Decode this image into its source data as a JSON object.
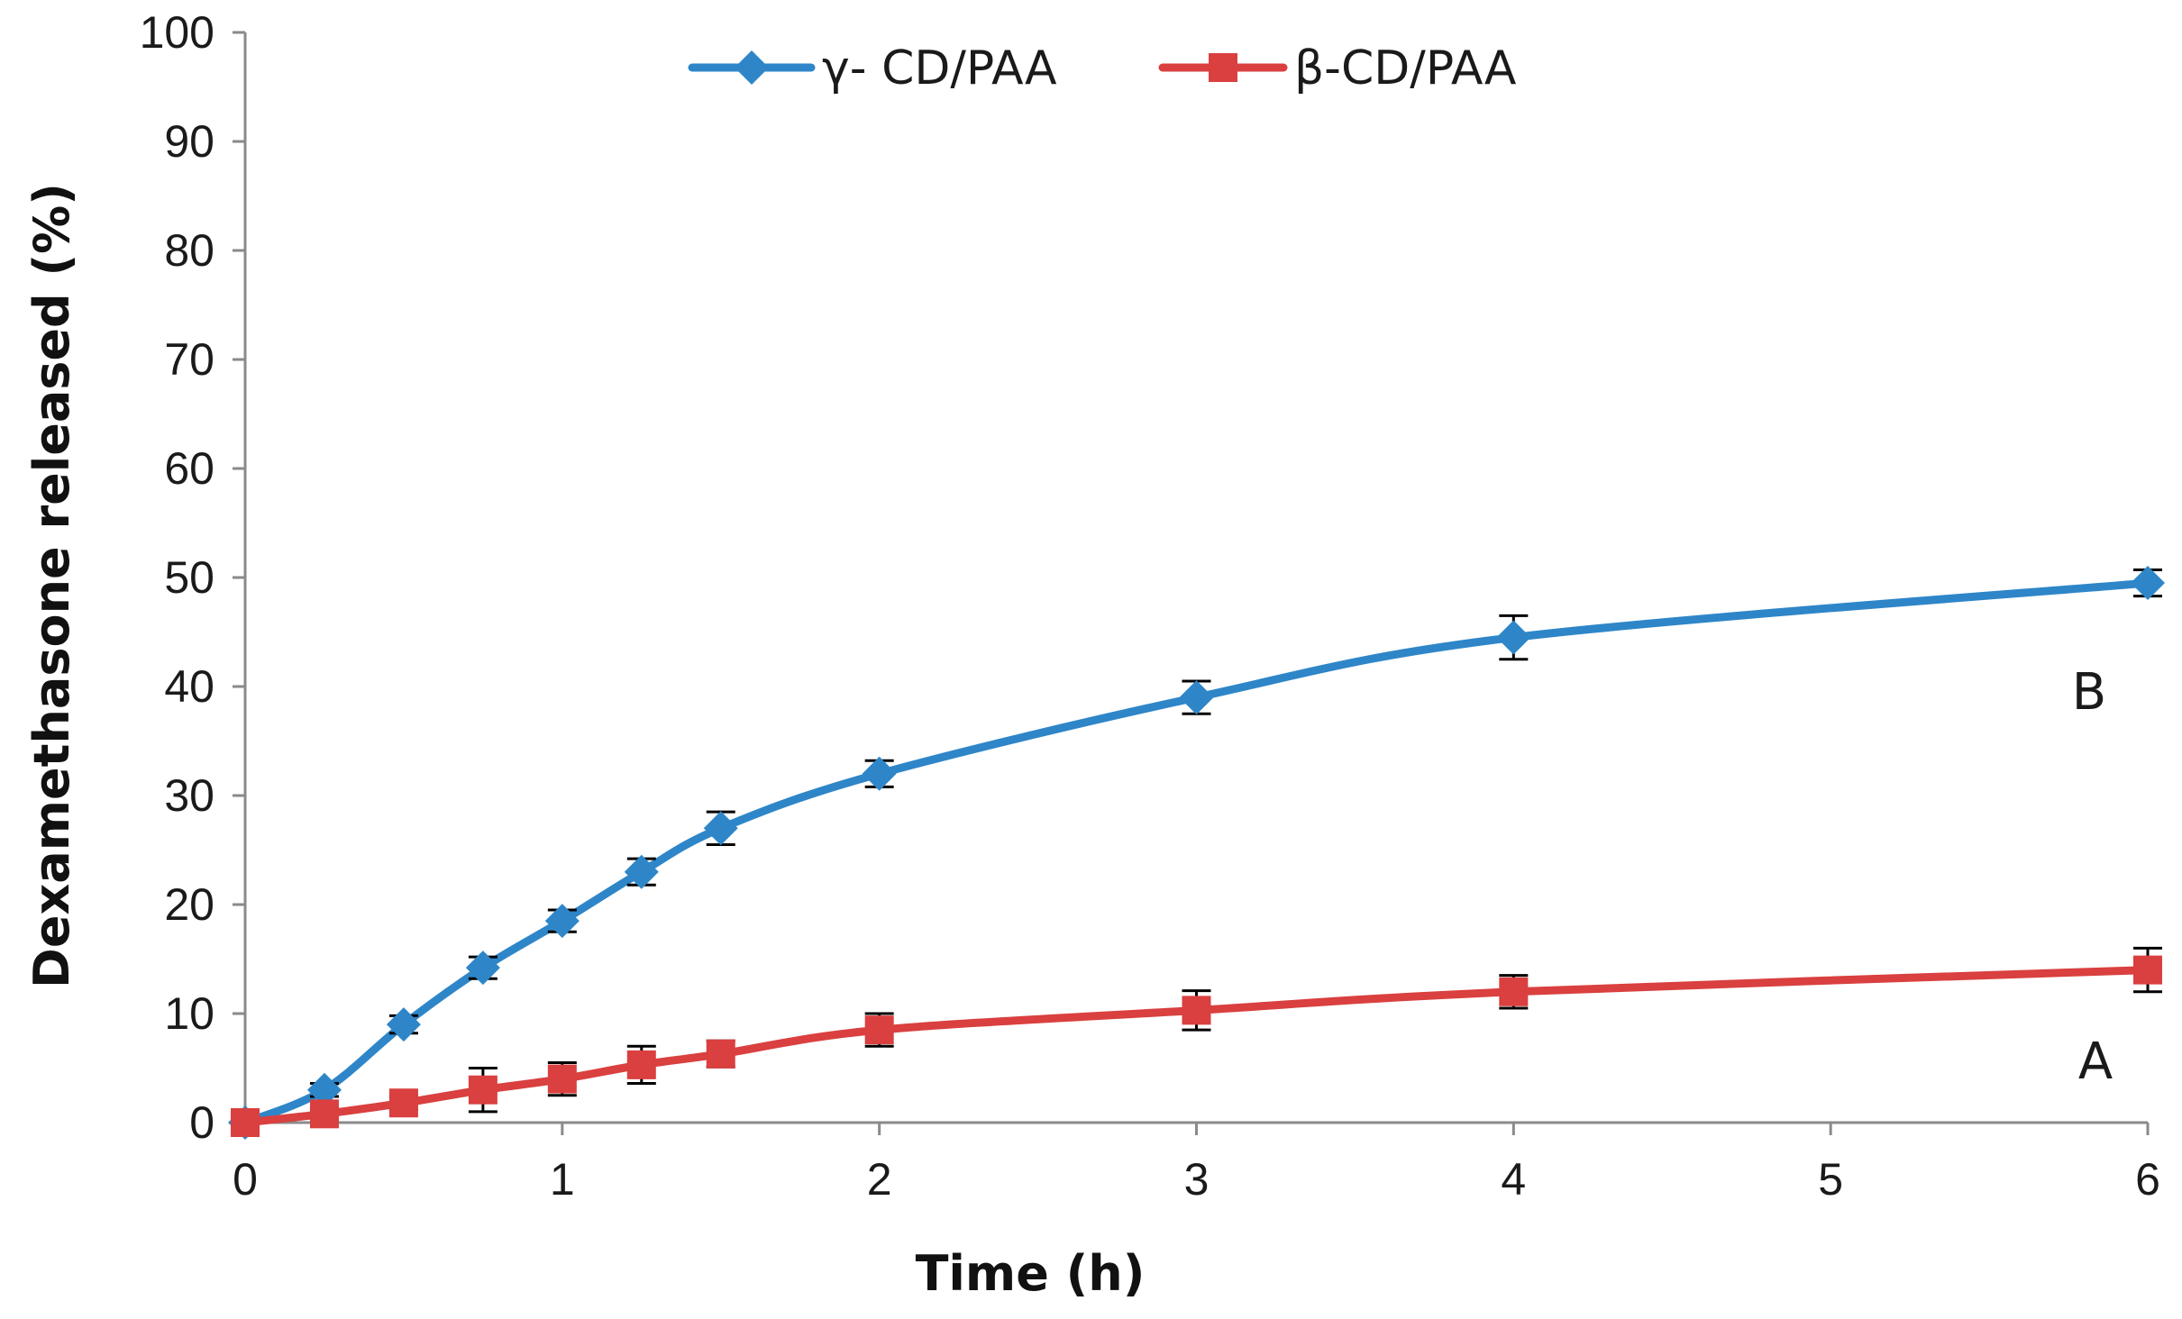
{
  "chart_data": {
    "type": "line",
    "title": "",
    "xlabel": "Time (h)",
    "ylabel": "Dexamethasone released (%)",
    "xlim": [
      0,
      6
    ],
    "ylim": [
      0,
      100
    ],
    "xticks": [
      0,
      1,
      2,
      3,
      4,
      5,
      6
    ],
    "yticks": [
      0,
      10,
      20,
      30,
      40,
      50,
      60,
      70,
      80,
      90,
      100
    ],
    "grid": false,
    "legend_position": "top-center",
    "x": [
      0,
      0.25,
      0.5,
      0.75,
      1,
      1.25,
      1.5,
      2,
      3,
      4,
      6
    ],
    "series": [
      {
        "name": "γ- CD/PAA",
        "color": "#2e86c8",
        "marker": "diamond",
        "values": [
          0,
          3,
          9,
          14.2,
          18.5,
          23,
          27,
          32,
          39,
          44.5,
          49.5
        ],
        "errors": [
          0,
          0.6,
          0.8,
          1.0,
          1.0,
          1.2,
          1.5,
          1.2,
          1.5,
          2.0,
          1.2
        ],
        "label": "B"
      },
      {
        "name": "β-CD/PAA",
        "color": "#d9403f",
        "marker": "square",
        "values": [
          0,
          0.8,
          1.8,
          3,
          4,
          5.3,
          6.3,
          8.5,
          10.3,
          12,
          14
        ],
        "errors": [
          0,
          0.5,
          0.6,
          2.0,
          1.5,
          1.7,
          1.2,
          1.5,
          1.8,
          1.5,
          2.0
        ],
        "label": "A"
      }
    ]
  }
}
